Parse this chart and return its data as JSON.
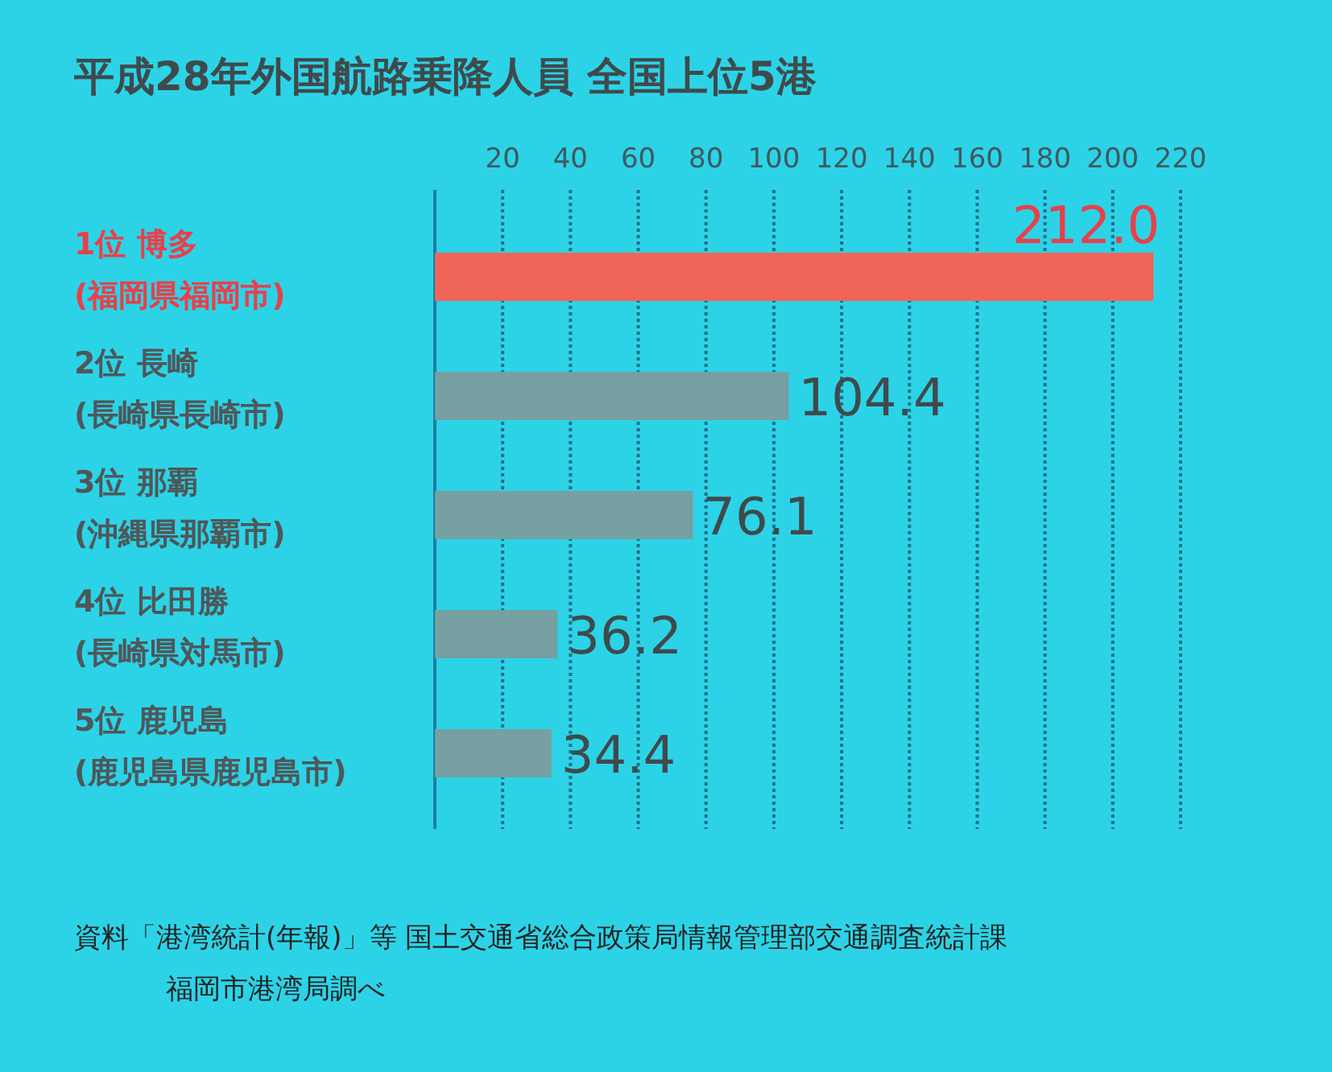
{
  "chart_data": {
    "type": "bar",
    "orientation": "horizontal",
    "title": "平成28年外国航路乗降人員 全国上位5港",
    "categories": [
      "1位 博多\n(福岡県福岡市)",
      "2位 長崎\n(長崎県長崎市)",
      "3位 那覇\n(沖縄県那覇市)",
      "4位 比田勝\n(長崎県対馬市)",
      "5位 鹿児島\n(鹿児島県鹿児島市)"
    ],
    "values": [
      212.0,
      104.4,
      76.1,
      36.2,
      34.4
    ],
    "value_labels": [
      "212.0",
      "104.4",
      "76.1",
      "36.2",
      "34.4"
    ],
    "colors": [
      "#ef6659",
      "#76a0a2",
      "#76a0a2",
      "#76a0a2",
      "#76a0a2"
    ],
    "xlim": [
      0,
      220
    ],
    "xticks": [
      20,
      40,
      60,
      80,
      100,
      120,
      140,
      160,
      180,
      200,
      220
    ],
    "grid": "x",
    "line_style": "dotted",
    "annotations": [
      "資料「港湾統計(年報)」等 国土交通省総合政策局情報管理部交通調査統計課",
      "福岡市港湾局調べ"
    ]
  }
}
